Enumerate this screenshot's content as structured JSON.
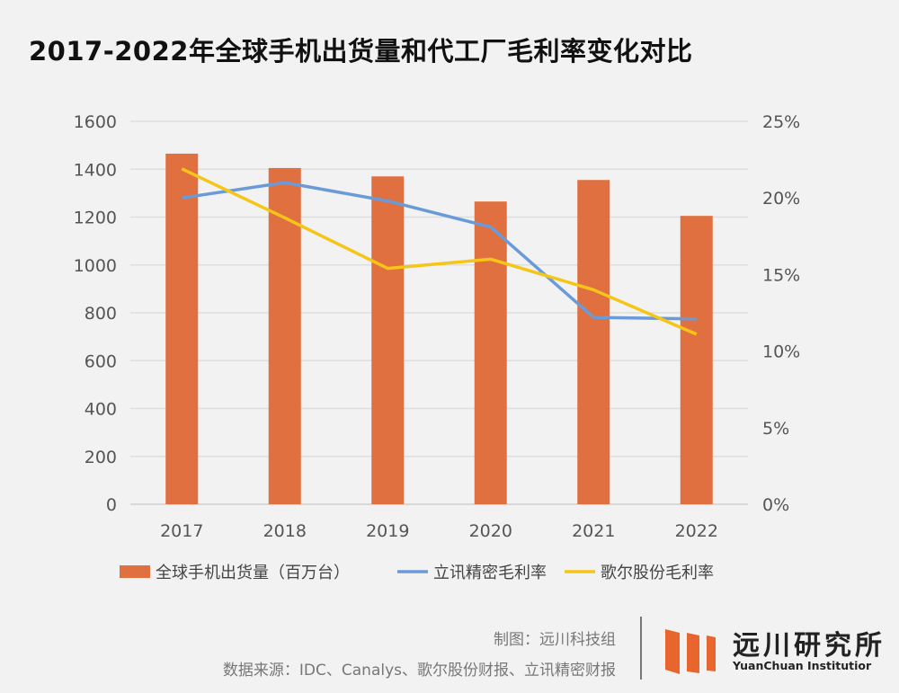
{
  "chart_data": {
    "type": "bar+line",
    "title": "2017-2022年全球手机出货量和代工厂毛利率变化对比",
    "categories": [
      "2017",
      "2018",
      "2019",
      "2020",
      "2021",
      "2022"
    ],
    "left_axis": {
      "ylim": [
        0,
        1600
      ],
      "ticks": [
        "0",
        "200",
        "400",
        "600",
        "800",
        "1000",
        "1200",
        "1400",
        "1600"
      ]
    },
    "right_axis": {
      "ylim": [
        0,
        25
      ],
      "ticks": [
        "0%",
        "5%",
        "10%",
        "15%",
        "20%",
        "25%"
      ]
    },
    "grid": true,
    "legend_position": "bottom",
    "series": [
      {
        "name": "全球手机出货量（百万台）",
        "type": "bar",
        "axis": "left",
        "color": "#e07040",
        "values": [
          1465,
          1405,
          1370,
          1265,
          1355,
          1205
        ]
      },
      {
        "name": "立讯精密毛利率",
        "type": "line",
        "axis": "right",
        "color": "#6a9bd8",
        "values": [
          20.0,
          21.0,
          19.8,
          18.1,
          12.2,
          12.1
        ]
      },
      {
        "name": "歌尔股份毛利率",
        "type": "line",
        "axis": "right",
        "color": "#f5c518",
        "values": [
          21.9,
          18.7,
          15.4,
          16.0,
          14.0,
          11.1
        ]
      }
    ]
  },
  "footer": {
    "credit": "制图：远川科技组",
    "source": "数据来源：IDC、Canalys、歌尔股份财报、立讯精密财报"
  },
  "logo": {
    "cn": "远川研究所",
    "en": "YuanChuan Institutior"
  }
}
